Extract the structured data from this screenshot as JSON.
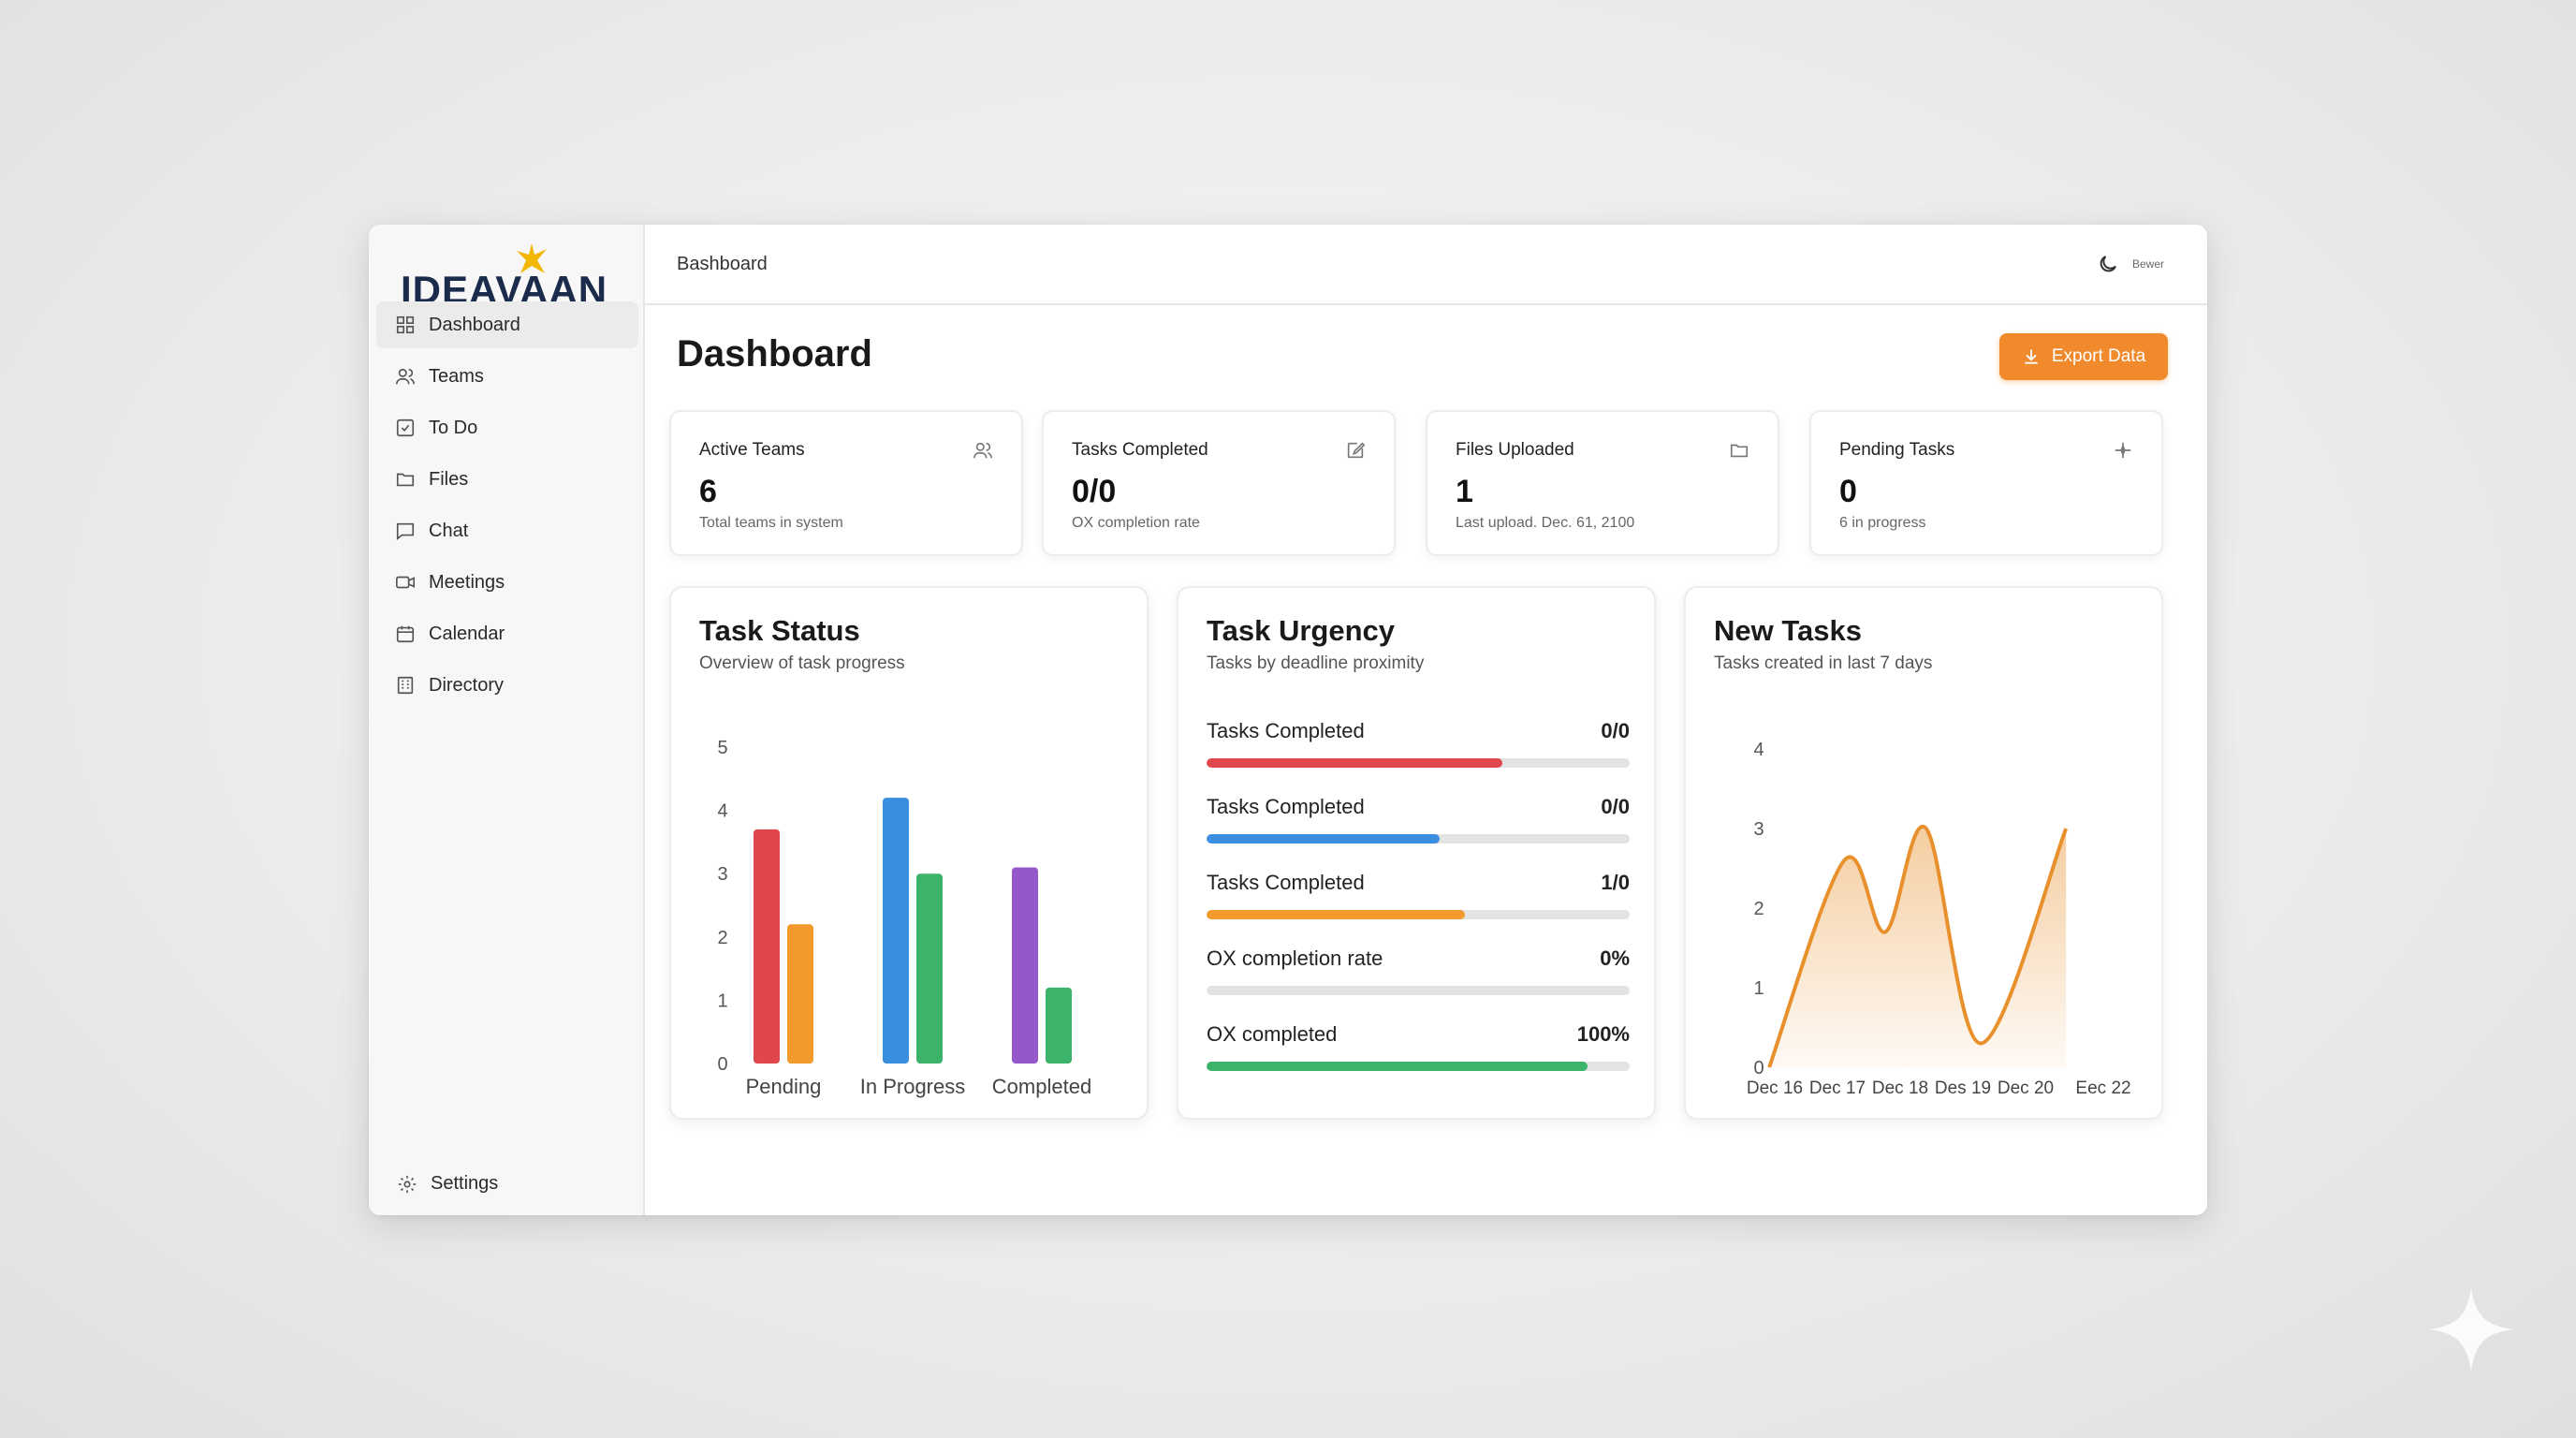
{
  "brand": {
    "logo_text": "IDEAVAAN"
  },
  "sidebar": {
    "items": [
      {
        "label": "Dashboard",
        "icon": "grid-icon",
        "active": true
      },
      {
        "label": "Teams",
        "icon": "users-icon"
      },
      {
        "label": "To Do",
        "icon": "checkbox-icon"
      },
      {
        "label": "Files",
        "icon": "folder-icon"
      },
      {
        "label": "Chat",
        "icon": "chat-icon"
      },
      {
        "label": "Meetings",
        "icon": "video-icon"
      },
      {
        "label": "Calendar",
        "icon": "calendar-icon"
      },
      {
        "label": "Directory",
        "icon": "directory-icon"
      }
    ],
    "settings_label": "Settings"
  },
  "topbar": {
    "breadcrumb": "Bashboard",
    "user_label": "Bewer"
  },
  "main": {
    "title": "Dashboard",
    "export_label": "Export Data",
    "accent_color": "#f08a2c"
  },
  "stats": [
    {
      "label": "Active Teams",
      "value": "6",
      "sub": "Total teams in system",
      "icon": "users-icon"
    },
    {
      "label": "Tasks Completed",
      "value": "0/0",
      "sub": "OX completion rate",
      "icon": "edit-icon"
    },
    {
      "label": "Files Uploaded",
      "value": "1",
      "sub": "Last upload. Dec. 61, 2100",
      "icon": "folder-icon"
    },
    {
      "label": "Pending Tasks",
      "value": "0",
      "sub": "6 in progress",
      "icon": "sparkle-icon"
    }
  ],
  "task_status": {
    "title": "Task Status",
    "subtitle": "Overview of task progress"
  },
  "task_urgency": {
    "title": "Task Urgency",
    "subtitle": "Tasks by deadline proximity",
    "rows": [
      {
        "label": "Tasks Completed",
        "value": "0/0",
        "fill": 0.7,
        "color": "#e0474c"
      },
      {
        "label": "Tasks Completed",
        "value": "0/0",
        "fill": 0.55,
        "color": "#3a8ee0"
      },
      {
        "label": "Tasks Completed",
        "value": "1/0",
        "fill": 0.61,
        "color": "#f39a2c"
      },
      {
        "label": "OX completion rate",
        "value": "0%",
        "fill": 0.0,
        "color": "#cccccc"
      },
      {
        "label": "OX completed",
        "value": "100%",
        "fill": 0.9,
        "color": "#3bb36a"
      }
    ]
  },
  "new_tasks": {
    "title": "New Tasks",
    "subtitle": "Tasks created in last 7 days"
  },
  "chart_data": [
    {
      "type": "bar",
      "categories": [
        "Pending",
        "In Progress",
        "Completed"
      ],
      "series": [
        {
          "values": [
            3.7,
            4.2,
            3.1
          ],
          "colors": [
            "#e0474c",
            "#3a8ee0",
            "#9558c8"
          ]
        },
        {
          "values": [
            2.2,
            3.0,
            1.2
          ],
          "colors": [
            "#f39a2c",
            "#3bb36a",
            "#3bb36a"
          ]
        }
      ],
      "yticks": [
        "0",
        "1",
        "2",
        "3",
        "4",
        "5"
      ],
      "ylim": [
        0,
        5
      ]
    },
    {
      "type": "area",
      "x": [
        "Dec 16",
        "Dec 17",
        "Dec 18",
        "Des 19",
        "Dec 20",
        "Eec 22"
      ],
      "yticks": [
        "0",
        "1",
        "2",
        "3",
        "4"
      ],
      "ylim": [
        0,
        4
      ],
      "points": [
        [
          0,
          0
        ],
        [
          1.1,
          2.6
        ],
        [
          1.7,
          1.7
        ],
        [
          2.3,
          3.0
        ],
        [
          3.1,
          0.3
        ],
        [
          4.35,
          3.0
        ]
      ],
      "xlim": [
        -0.4,
        5.5
      ],
      "color": "#e8902c"
    }
  ]
}
